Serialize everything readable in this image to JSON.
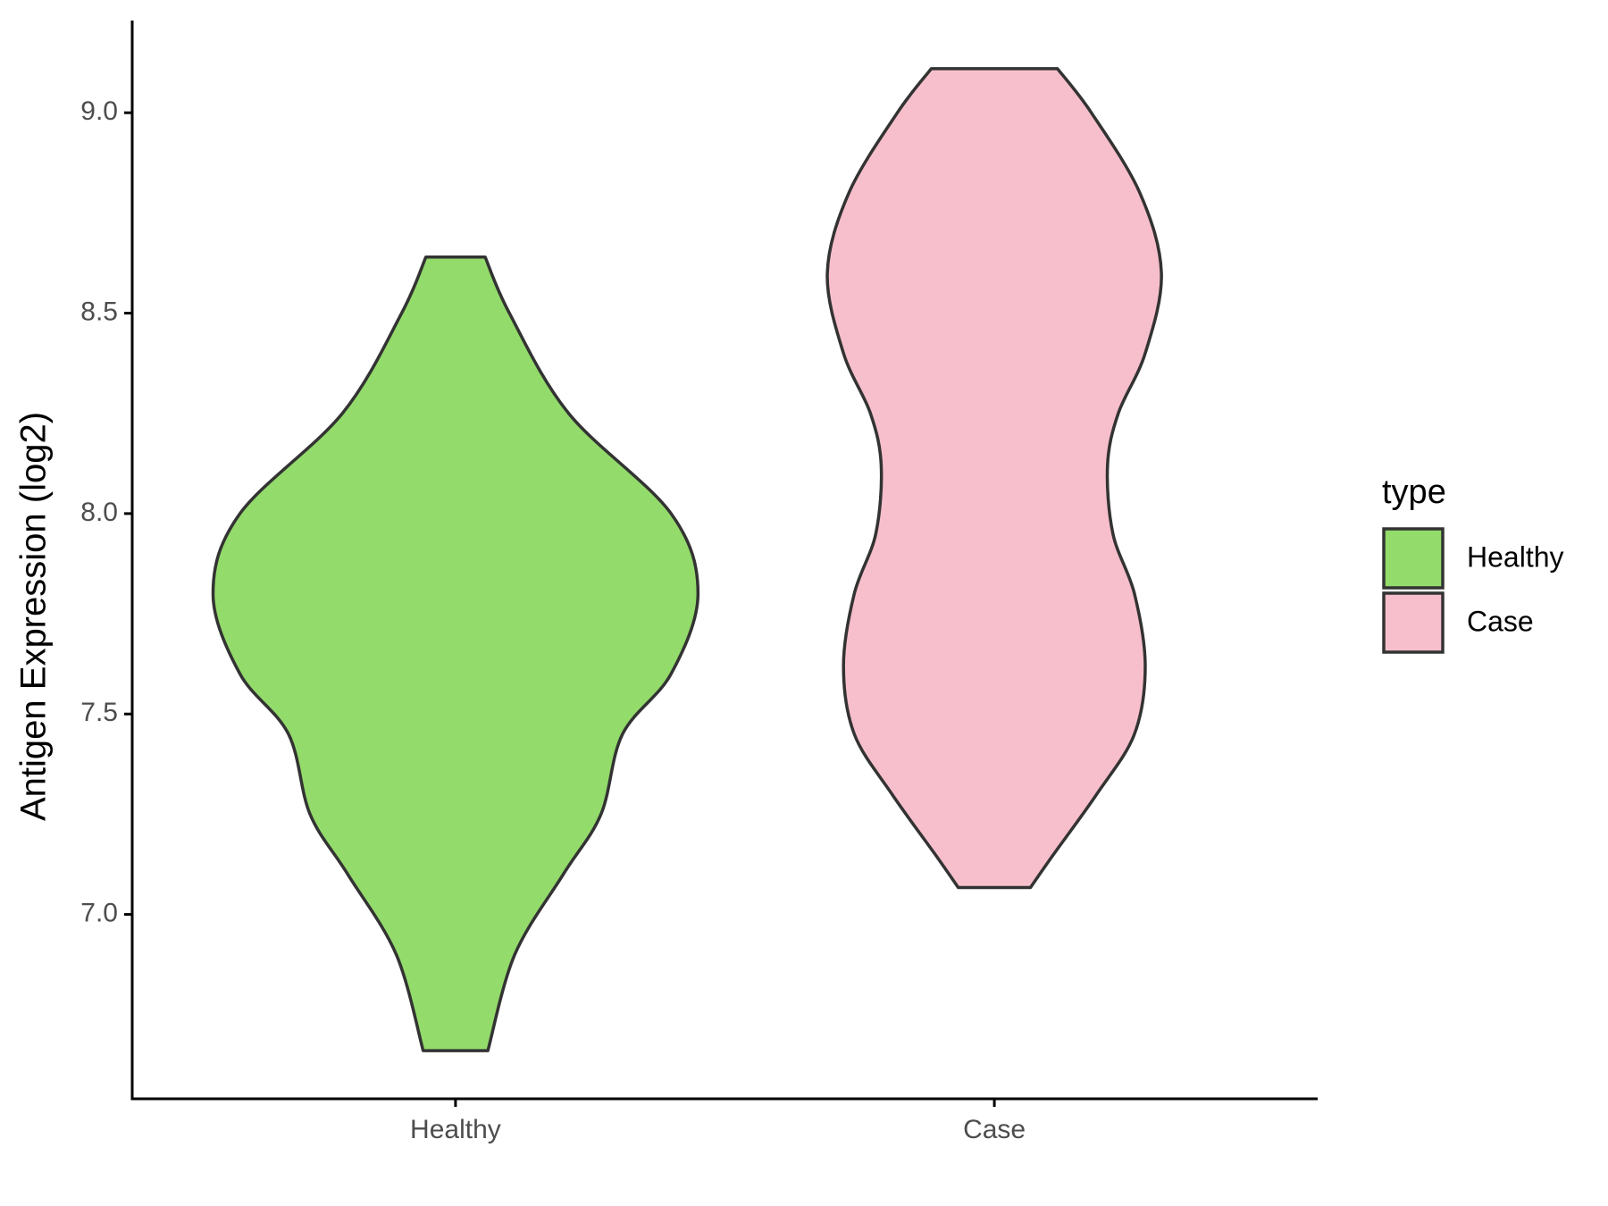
{
  "chart_data": {
    "type": "violin",
    "y_label": "Antigen Expression (log2)",
    "categories": [
      "Healthy",
      "Case"
    ],
    "ylim": [
      6.54,
      9.23
    ],
    "yticks": [
      {
        "value": 7,
        "label": "7.0"
      },
      7.5,
      {
        "value": 8,
        "label": "8.0"
      },
      8.5,
      {
        "value": 9,
        "label": "9.0"
      }
    ],
    "legend_title": "type",
    "legend": "right",
    "series": [
      {
        "name": "Healthy",
        "color": "#93db6b",
        "y": [
          8.64,
          8.5,
          8.25,
          8.0,
          7.8,
          7.6,
          7.45,
          7.25,
          7.1,
          6.9,
          6.66
        ],
        "width": [
          0.055,
          0.1,
          0.21,
          0.4,
          0.45,
          0.4,
          0.31,
          0.27,
          0.2,
          0.11,
          0.06
        ]
      },
      {
        "name": "Case",
        "color": "#f7bfcb",
        "y": [
          9.11,
          9.0,
          8.8,
          8.6,
          8.4,
          8.25,
          8.12,
          7.95,
          7.8,
          7.62,
          7.45,
          7.3,
          7.15,
          7.067
        ],
        "width": [
          0.117,
          0.18,
          0.27,
          0.31,
          0.28,
          0.23,
          0.21,
          0.22,
          0.26,
          0.28,
          0.26,
          0.19,
          0.11,
          0.067
        ]
      }
    ]
  }
}
